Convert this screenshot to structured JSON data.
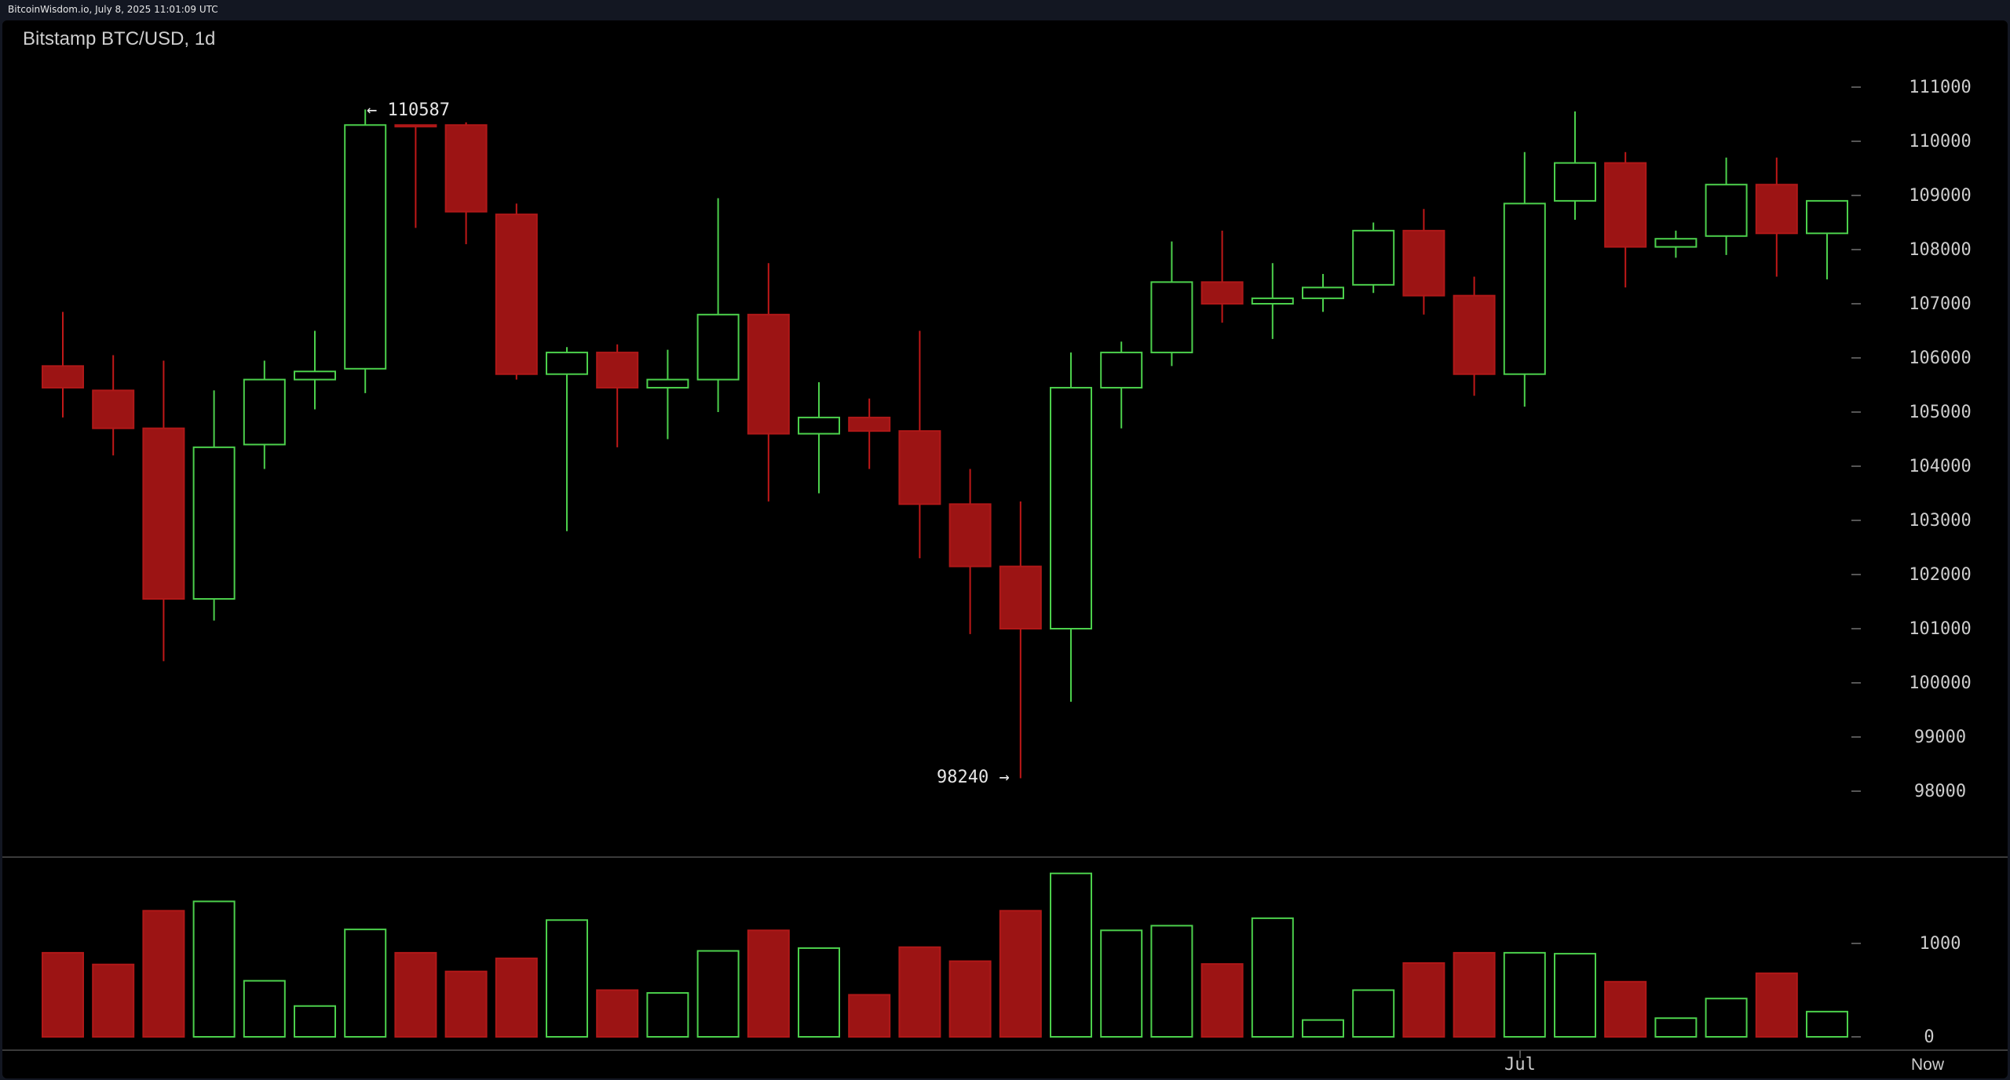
{
  "header": {
    "text": "BitcoinWisdom.io, July 8, 2025 11:01:09 UTC"
  },
  "chart_title": "Bitstamp BTC/USD, 1d",
  "annotations": {
    "high": "← 110587",
    "low": "98240 →"
  },
  "colors": {
    "up": "#4cd04c",
    "down": "#9c1414",
    "background": "#000000",
    "axis_text": "#cccccc"
  },
  "chart_data": [
    {
      "type": "candlestick",
      "title": "Bitstamp BTC/USD, 1d",
      "ylim": [
        97000,
        111600
      ],
      "yticks": [
        98000,
        99000,
        100000,
        101000,
        102000,
        103000,
        104000,
        105000,
        106000,
        107000,
        108000,
        109000,
        110000,
        111000
      ],
      "x_labels": [
        "Jul",
        "Now"
      ],
      "candles": [
        {
          "o": 105850,
          "h": 106850,
          "l": 104900,
          "c": 105450
        },
        {
          "o": 105400,
          "h": 106050,
          "l": 104200,
          "c": 104700
        },
        {
          "o": 104700,
          "h": 105950,
          "l": 100400,
          "c": 101550
        },
        {
          "o": 101550,
          "h": 105400,
          "l": 101150,
          "c": 104350
        },
        {
          "o": 104400,
          "h": 105950,
          "l": 103950,
          "c": 105600
        },
        {
          "o": 105600,
          "h": 106500,
          "l": 105050,
          "c": 105750
        },
        {
          "o": 105800,
          "h": 110587,
          "l": 105350,
          "c": 110300
        },
        {
          "o": 110300,
          "h": 110300,
          "l": 108400,
          "c": 110300
        },
        {
          "o": 110300,
          "h": 110350,
          "l": 108100,
          "c": 108700
        },
        {
          "o": 108650,
          "h": 108850,
          "l": 105600,
          "c": 105700
        },
        {
          "o": 105700,
          "h": 106200,
          "l": 102800,
          "c": 106100
        },
        {
          "o": 106100,
          "h": 106250,
          "l": 104350,
          "c": 105450
        },
        {
          "o": 105450,
          "h": 106150,
          "l": 104500,
          "c": 105600
        },
        {
          "o": 105600,
          "h": 108950,
          "l": 105000,
          "c": 106800
        },
        {
          "o": 106800,
          "h": 107750,
          "l": 103350,
          "c": 104600
        },
        {
          "o": 104600,
          "h": 105550,
          "l": 103500,
          "c": 104900
        },
        {
          "o": 104900,
          "h": 105250,
          "l": 103950,
          "c": 104650
        },
        {
          "o": 104650,
          "h": 106500,
          "l": 102300,
          "c": 103300
        },
        {
          "o": 103300,
          "h": 103950,
          "l": 100900,
          "c": 102150
        },
        {
          "o": 102150,
          "h": 103350,
          "l": 98240,
          "c": 101000
        },
        {
          "o": 101000,
          "h": 106100,
          "l": 99650,
          "c": 105450
        },
        {
          "o": 105450,
          "h": 106300,
          "l": 104700,
          "c": 106100
        },
        {
          "o": 106100,
          "h": 108150,
          "l": 105850,
          "c": 107400
        },
        {
          "o": 107400,
          "h": 108350,
          "l": 106650,
          "c": 107000
        },
        {
          "o": 107000,
          "h": 107750,
          "l": 106350,
          "c": 107100
        },
        {
          "o": 107100,
          "h": 107550,
          "l": 106850,
          "c": 107300
        },
        {
          "o": 107350,
          "h": 108500,
          "l": 107200,
          "c": 108350
        },
        {
          "o": 108350,
          "h": 108750,
          "l": 106800,
          "c": 107150
        },
        {
          "o": 107150,
          "h": 107500,
          "l": 105300,
          "c": 105700
        },
        {
          "o": 105700,
          "h": 109800,
          "l": 105100,
          "c": 108850
        },
        {
          "o": 108900,
          "h": 110550,
          "l": 108550,
          "c": 109600
        },
        {
          "o": 109600,
          "h": 109800,
          "l": 107300,
          "c": 108050
        },
        {
          "o": 108050,
          "h": 108350,
          "l": 107850,
          "c": 108200
        },
        {
          "o": 108250,
          "h": 109700,
          "l": 107900,
          "c": 109200
        },
        {
          "o": 109200,
          "h": 109700,
          "l": 107500,
          "c": 108300
        },
        {
          "o": 108300,
          "h": 108850,
          "l": 107450,
          "c": 108900
        }
      ]
    },
    {
      "type": "bar",
      "title": "volume",
      "ylim": [
        0,
        1900
      ],
      "yticks": [
        0,
        1000
      ],
      "values": [
        900,
        775,
        1350,
        1450,
        600,
        330,
        1150,
        900,
        700,
        840,
        1250,
        500,
        470,
        920,
        1140,
        950,
        450,
        960,
        810,
        1350,
        1750,
        1140,
        1190,
        780,
        1270,
        180,
        500,
        790,
        900,
        900,
        890,
        590,
        200,
        410,
        680,
        270
      ]
    }
  ]
}
